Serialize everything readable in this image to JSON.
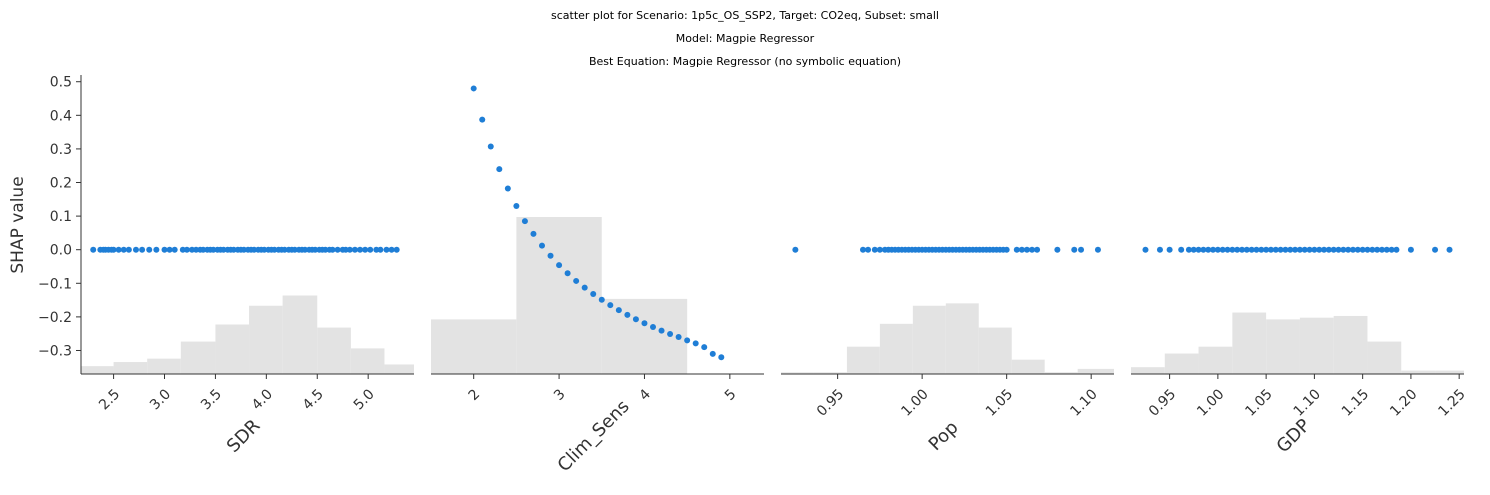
{
  "titles": {
    "line1": "scatter plot for Scenario: 1p5c_OS_SSP2, Target: CO2eq, Subset: small",
    "line2": "Model: Magpie Regressor",
    "line3": "Best Equation: Magpie Regressor (no symbolic equation)"
  },
  "colors": {
    "points": "#1f7ed6",
    "hist": "#e3e3e3",
    "axis": "#333333"
  },
  "chart_data": [
    {
      "type": "scatter",
      "xlabel": "SDR",
      "ylabel": "SHAP value",
      "ylim": [
        -0.37,
        0.52
      ],
      "yticks": [
        "0.5",
        "0.4",
        "0.3",
        "0.2",
        "0.1",
        "0.0",
        "-0.1",
        "-0.2",
        "-0.3"
      ],
      "xlim": [
        2.18,
        5.45
      ],
      "xticks": [
        "2.5",
        "3.0",
        "3.5",
        "4.0",
        "4.5",
        "5.0"
      ],
      "hist": {
        "edges": [
          2.18,
          2.5,
          2.83,
          3.16,
          3.5,
          3.83,
          4.16,
          4.5,
          4.83,
          5.16,
          5.45
        ],
        "heights": [
          0.023,
          0.035,
          0.045,
          0.095,
          0.145,
          0.2,
          0.23,
          0.136,
          0.075,
          0.028
        ]
      },
      "x": [
        2.3,
        2.37,
        2.4,
        2.42,
        2.45,
        2.48,
        2.5,
        2.55,
        2.6,
        2.65,
        2.72,
        2.78,
        2.85,
        2.92,
        3.0,
        3.05,
        3.1,
        3.18,
        3.22,
        3.27,
        3.31,
        3.35,
        3.38,
        3.42,
        3.45,
        3.48,
        3.52,
        3.55,
        3.58,
        3.62,
        3.65,
        3.68,
        3.72,
        3.75,
        3.78,
        3.82,
        3.85,
        3.88,
        3.92,
        3.95,
        3.98,
        4.02,
        4.05,
        4.08,
        4.12,
        4.15,
        4.18,
        4.22,
        4.25,
        4.28,
        4.32,
        4.35,
        4.38,
        4.42,
        4.45,
        4.48,
        4.52,
        4.55,
        4.58,
        4.62,
        4.65,
        4.7,
        4.75,
        4.78,
        4.82,
        4.87,
        4.92,
        4.97,
        5.02,
        5.08,
        5.12,
        5.18,
        5.23,
        5.28
      ],
      "y": [
        0.0,
        0.0,
        0.0,
        0.0,
        0.0,
        0.0,
        0.0,
        0.0,
        0.0,
        0.0,
        0.0,
        0.0,
        0.0,
        0.0,
        0.0,
        0.0,
        0.0,
        0.0,
        0.0,
        0.0,
        0.0,
        0.0,
        0.0,
        0.0,
        0.0,
        0.0,
        0.0,
        0.0,
        0.0,
        0.0,
        0.0,
        0.0,
        0.0,
        0.0,
        0.0,
        0.0,
        0.0,
        0.0,
        0.0,
        0.0,
        0.0,
        0.0,
        0.0,
        0.0,
        0.0,
        0.0,
        0.0,
        0.0,
        0.0,
        0.0,
        0.0,
        0.0,
        0.0,
        0.0,
        0.0,
        0.0,
        0.0,
        0.0,
        0.0,
        0.0,
        0.0,
        0.0,
        0.0,
        0.0,
        0.0,
        0.0,
        0.0,
        0.0,
        0.0,
        0.0,
        0.0,
        0.0,
        0.0,
        0.0
      ]
    },
    {
      "type": "scatter",
      "xlabel": "Clim_Sens",
      "ylabel": "",
      "ylim": [
        -0.37,
        0.52
      ],
      "xlim": [
        1.5,
        5.4
      ],
      "xticks": [
        "2",
        "3",
        "4",
        "5"
      ],
      "hist": {
        "edges": [
          1.5,
          2.5,
          3.5,
          4.5
        ],
        "heights": [
          0.16,
          0.46,
          0.22
        ]
      },
      "x": [
        2.0,
        2.1,
        2.2,
        2.3,
        2.4,
        2.5,
        2.6,
        2.7,
        2.8,
        2.9,
        3.0,
        3.1,
        3.2,
        3.3,
        3.4,
        3.5,
        3.6,
        3.7,
        3.8,
        3.9,
        4.0,
        4.1,
        4.2,
        4.3,
        4.4,
        4.5,
        4.6,
        4.7,
        4.8,
        4.9
      ],
      "y": [
        0.48,
        0.387,
        0.307,
        0.24,
        0.182,
        0.13,
        0.085,
        0.047,
        0.012,
        -0.018,
        -0.046,
        -0.07,
        -0.093,
        -0.113,
        -0.132,
        -0.149,
        -0.165,
        -0.18,
        -0.194,
        -0.207,
        -0.219,
        -0.23,
        -0.241,
        -0.251,
        -0.26,
        -0.27,
        -0.279,
        -0.29,
        -0.31,
        -0.32
      ]
    },
    {
      "type": "scatter",
      "xlabel": "Pop",
      "ylabel": "",
      "ylim": [
        -0.37,
        0.52
      ],
      "xlim": [
        0.9165,
        1.1135
      ],
      "xticks": [
        "0.95",
        "1.00",
        "1.05",
        "1.10"
      ],
      "hist": {
        "edges": [
          0.9165,
          0.936,
          0.9555,
          0.975,
          0.9945,
          1.014,
          1.0335,
          1.053,
          1.0725,
          1.092,
          1.1135
        ],
        "heights": [
          0.005,
          0.005,
          0.08,
          0.147,
          0.2,
          0.207,
          0.136,
          0.042,
          0.005,
          0.015
        ]
      },
      "x": [
        0.925,
        0.965,
        0.968,
        0.972,
        0.975,
        0.978,
        0.98,
        0.982,
        0.984,
        0.986,
        0.988,
        0.99,
        0.992,
        0.994,
        0.996,
        0.998,
        1.0,
        1.002,
        1.004,
        1.006,
        1.008,
        1.01,
        1.012,
        1.014,
        1.016,
        1.018,
        1.02,
        1.022,
        1.024,
        1.026,
        1.028,
        1.03,
        1.032,
        1.034,
        1.036,
        1.038,
        1.04,
        1.042,
        1.044,
        1.046,
        1.048,
        1.05,
        1.056,
        1.059,
        1.062,
        1.065,
        1.068,
        1.08,
        1.09,
        1.094,
        1.104
      ],
      "y": [
        0.0,
        0.0,
        0.0,
        0.0,
        0.0,
        0.0,
        0.0,
        0.0,
        0.0,
        0.0,
        0.0,
        0.0,
        0.0,
        0.0,
        0.0,
        0.0,
        0.0,
        0.0,
        0.0,
        0.0,
        0.0,
        0.0,
        0.0,
        0.0,
        0.0,
        0.0,
        0.0,
        0.0,
        0.0,
        0.0,
        0.0,
        0.0,
        0.0,
        0.0,
        0.0,
        0.0,
        0.0,
        0.0,
        0.0,
        0.0,
        0.0,
        0.0,
        0.0,
        0.0,
        0.0,
        0.0,
        0.0,
        0.0,
        0.0,
        0.0,
        0.0
      ]
    },
    {
      "type": "scatter",
      "xlabel": "GDP",
      "ylabel": "",
      "ylim": [
        -0.37,
        0.52
      ],
      "xlim": [
        0.91,
        1.255
      ],
      "xticks": [
        "0.95",
        "1.00",
        "1.05",
        "1.10",
        "1.15",
        "1.20",
        "1.25"
      ],
      "hist": {
        "edges": [
          0.91,
          0.945,
          0.98,
          1.015,
          1.05,
          1.085,
          1.12,
          1.155,
          1.19,
          1.225,
          1.255
        ],
        "heights": [
          0.02,
          0.06,
          0.08,
          0.18,
          0.16,
          0.165,
          0.17,
          0.095,
          0.01,
          0.01
        ]
      },
      "x": [
        0.925,
        0.94,
        0.95,
        0.962,
        0.97,
        0.975,
        0.98,
        0.985,
        0.99,
        0.995,
        1.0,
        1.005,
        1.01,
        1.015,
        1.02,
        1.025,
        1.03,
        1.035,
        1.04,
        1.045,
        1.05,
        1.055,
        1.06,
        1.065,
        1.07,
        1.075,
        1.08,
        1.085,
        1.09,
        1.095,
        1.1,
        1.105,
        1.11,
        1.115,
        1.12,
        1.125,
        1.13,
        1.135,
        1.14,
        1.145,
        1.15,
        1.155,
        1.16,
        1.165,
        1.17,
        1.175,
        1.18,
        1.185,
        1.2,
        1.225,
        1.24
      ],
      "y": [
        0.0,
        0.0,
        0.0,
        0.0,
        0.0,
        0.0,
        0.0,
        0.0,
        0.0,
        0.0,
        0.0,
        0.0,
        0.0,
        0.0,
        0.0,
        0.0,
        0.0,
        0.0,
        0.0,
        0.0,
        0.0,
        0.0,
        0.0,
        0.0,
        0.0,
        0.0,
        0.0,
        0.0,
        0.0,
        0.0,
        0.0,
        0.0,
        0.0,
        0.0,
        0.0,
        0.0,
        0.0,
        0.0,
        0.0,
        0.0,
        0.0,
        0.0,
        0.0,
        0.0,
        0.0,
        0.0,
        0.0,
        0.0,
        0.0,
        0.0,
        0.0
      ]
    }
  ]
}
